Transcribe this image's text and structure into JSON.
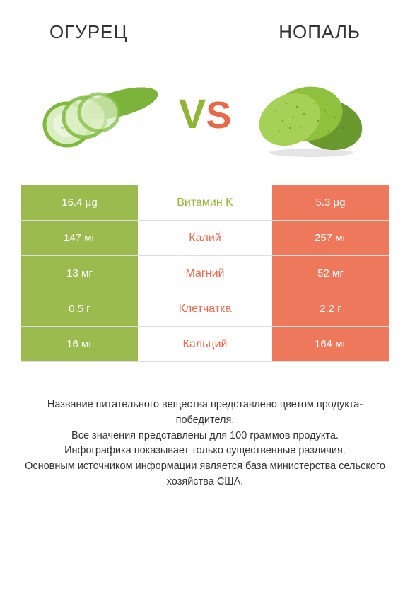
{
  "colors": {
    "left": "#9cbb4f",
    "right": "#ee785c",
    "left_text": "#8fb536",
    "right_text": "#e8684a",
    "border": "#dddddd",
    "bg": "#ffffff",
    "text": "#333333"
  },
  "left_title": "ОГУРЕЦ",
  "right_title": "НОПАЛЬ",
  "vs_v": "V",
  "vs_s": "S",
  "rows": [
    {
      "left": "16.4 µg",
      "mid": "Витамин K",
      "right": "5.3 µg",
      "winner": "left"
    },
    {
      "left": "147 мг",
      "mid": "Калий",
      "right": "257 мг",
      "winner": "right"
    },
    {
      "left": "13 мг",
      "mid": "Магний",
      "right": "52 мг",
      "winner": "right"
    },
    {
      "left": "0.5 г",
      "mid": "Клетчатка",
      "right": "2.2 г",
      "winner": "right"
    },
    {
      "left": "16 мг",
      "mid": "Кальций",
      "right": "164 мг",
      "winner": "right"
    }
  ],
  "footer_lines": [
    "Название питательного вещества представлено цветом продукта-победителя.",
    "Все значения представлены для 100 граммов продукта.",
    "Инфографика показывает только существенные различия.",
    "Основным источником информации является база министерства сельского хозяйства США."
  ]
}
